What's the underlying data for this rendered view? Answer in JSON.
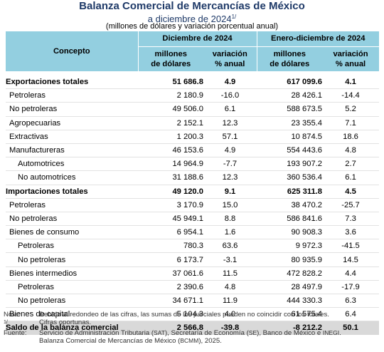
{
  "title": "Balanza Comercial de Mercancías de México",
  "subtitle": "a diciembre de 2024",
  "subtitle_sup": "1/",
  "units_note": "(millones de dólares y variación porcentual anual)",
  "header": {
    "concepto": "Concepto",
    "group_dec": "Diciembre de 2024",
    "group_ene": "Enero-diciembre de 2024",
    "col_millones_l1": "millones",
    "col_millones_l2": "de dólares",
    "col_var_l1": "variación",
    "col_var_l2": "% anual"
  },
  "rows": [
    {
      "label": "Exportaciones totales",
      "indent": 0,
      "bold": true,
      "dec_val": "51 686.8",
      "dec_var": "4.9",
      "ene_val": "617 099.6",
      "ene_var": "4.1"
    },
    {
      "label": "Petroleras",
      "indent": 1,
      "bold": false,
      "dec_val": "2 180.9",
      "dec_var": "-16.0",
      "ene_val": "28 426.1",
      "ene_var": "-14.4"
    },
    {
      "label": "No petroleras",
      "indent": 1,
      "bold": false,
      "dec_val": "49 506.0",
      "dec_var": "6.1",
      "ene_val": "588 673.5",
      "ene_var": "5.2"
    },
    {
      "label": "Agropecuarias",
      "indent": 1,
      "bold": false,
      "dec_val": "2 152.1",
      "dec_var": "12.3",
      "ene_val": "23 355.4",
      "ene_var": "7.1"
    },
    {
      "label": "Extractivas",
      "indent": 1,
      "bold": false,
      "dec_val": "1 200.3",
      "dec_var": "57.1",
      "ene_val": "10 874.5",
      "ene_var": "18.6"
    },
    {
      "label": "Manufactureras",
      "indent": 1,
      "bold": false,
      "dec_val": "46 153.6",
      "dec_var": "4.9",
      "ene_val": "554 443.6",
      "ene_var": "4.8"
    },
    {
      "label": "Automotrices",
      "indent": 2,
      "bold": false,
      "dec_val": "14 964.9",
      "dec_var": "-7.7",
      "ene_val": "193 907.2",
      "ene_var": "2.7"
    },
    {
      "label": "No automotrices",
      "indent": 2,
      "bold": false,
      "dec_val": "31 188.6",
      "dec_var": "12.3",
      "ene_val": "360 536.4",
      "ene_var": "6.1"
    },
    {
      "label": "Importaciones totales",
      "indent": 0,
      "bold": true,
      "dec_val": "49 120.0",
      "dec_var": "9.1",
      "ene_val": "625 311.8",
      "ene_var": "4.5"
    },
    {
      "label": "Petroleras",
      "indent": 1,
      "bold": false,
      "dec_val": "3 170.9",
      "dec_var": "15.0",
      "ene_val": "38 470.2",
      "ene_var": "-25.7"
    },
    {
      "label": "No petroleras",
      "indent": 1,
      "bold": false,
      "dec_val": "45 949.1",
      "dec_var": "8.8",
      "ene_val": "586 841.6",
      "ene_var": "7.3"
    },
    {
      "label": "Bienes de consumo",
      "indent": 1,
      "bold": false,
      "dec_val": "6 954.1",
      "dec_var": "1.6",
      "ene_val": "90 908.3",
      "ene_var": "3.6"
    },
    {
      "label": "Petroleras",
      "indent": 2,
      "bold": false,
      "dec_val": "780.3",
      "dec_var": "63.6",
      "ene_val": "9 972.3",
      "ene_var": "-41.5"
    },
    {
      "label": "No petroleras",
      "indent": 2,
      "bold": false,
      "dec_val": "6 173.7",
      "dec_var": "-3.1",
      "ene_val": "80 935.9",
      "ene_var": "14.5"
    },
    {
      "label": "Bienes intermedios",
      "indent": 1,
      "bold": false,
      "dec_val": "37 061.6",
      "dec_var": "11.5",
      "ene_val": "472 828.2",
      "ene_var": "4.4"
    },
    {
      "label": "Petroleras",
      "indent": 2,
      "bold": false,
      "dec_val": "2 390.6",
      "dec_var": "4.8",
      "ene_val": "28 497.9",
      "ene_var": "-17.9"
    },
    {
      "label": "No petroleras",
      "indent": 2,
      "bold": false,
      "dec_val": "34 671.1",
      "dec_var": "11.9",
      "ene_val": "444 330.3",
      "ene_var": "6.3"
    },
    {
      "label": "Bienes de capital",
      "indent": 1,
      "bold": false,
      "dec_val": "5 104.3",
      "dec_var": "4.0",
      "ene_val": "61 575.4",
      "ene_var": "6.4"
    },
    {
      "label": "Saldo de la balanza comercial",
      "indent": 0,
      "bold": true,
      "shade": true,
      "dec_val": "2 566.8",
      "dec_var": "-39.8",
      "ene_val": "-8 212.2",
      "ene_var": "50.1"
    }
  ],
  "notes": {
    "nota_key": "Nota:",
    "nota_text": "Debido al redondeo de las cifras, las sumas de los parciales pueden no coincidir con los totales.",
    "sup_key": "1/",
    "sup_text": "Cifras oportunas.",
    "fuente_key": "Fuente:",
    "fuente_p1": "Servicio de Administración Tributaria (",
    "fuente_sat": "SAT",
    "fuente_p2": "), Secretaría de Economía (",
    "fuente_se": "SE",
    "fuente_p3": "), Banco de México e ",
    "fuente_inegi": "INEGI",
    "fuente_p4": ".",
    "fuente_l2_p1": "Balanza Comercial de Mercancías de México (",
    "fuente_bcmm": "BCMM",
    "fuente_l2_p2": "), 2025."
  }
}
